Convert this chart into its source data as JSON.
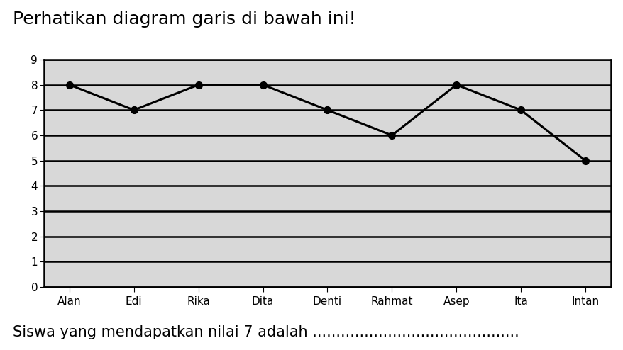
{
  "title": "Perhatikan diagram garis di bawah ini!",
  "subtitle": "Siswa yang mendapatkan nilai 7 adalah ............................................",
  "categories": [
    "Alan",
    "Edi",
    "Rika",
    "Dita",
    "Denti",
    "Rahmat",
    "Asep",
    "Ita",
    "Intan"
  ],
  "values": [
    8,
    7,
    8,
    8,
    7,
    6,
    8,
    7,
    5
  ],
  "ylim": [
    0,
    9
  ],
  "yticks": [
    0,
    1,
    2,
    3,
    4,
    5,
    6,
    7,
    8,
    9
  ],
  "line_color": "#000000",
  "marker": "o",
  "marker_size": 7,
  "line_width": 2.2,
  "bg_color": "#d8d8d8",
  "grid_color": "#000000",
  "grid_linewidth": 1.8,
  "title_fontsize": 18,
  "tick_fontsize": 11,
  "subtitle_fontsize": 15,
  "fig_bg": "#ffffff"
}
